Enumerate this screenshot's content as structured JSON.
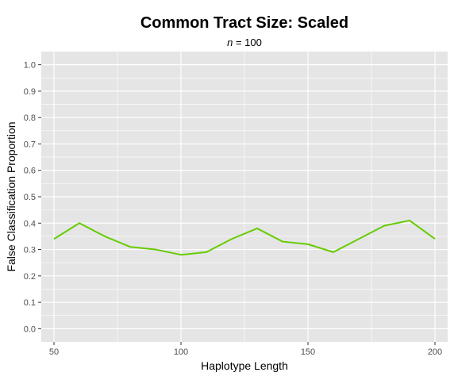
{
  "chart_data": {
    "type": "line",
    "title": "Common Tract Size: Scaled",
    "subtitle": {
      "italic": "n",
      "rest": " = 100"
    },
    "xlabel": "Haplotype Length",
    "ylabel": "False Classification Proportion",
    "xlim": [
      45,
      205
    ],
    "ylim": [
      -0.05,
      1.05
    ],
    "xticks": [
      50,
      100,
      150,
      200
    ],
    "yticks": [
      0.0,
      0.1,
      0.2,
      0.3,
      0.4,
      0.5,
      0.6,
      0.7,
      0.8,
      0.9,
      1.0
    ],
    "xtick_labels": [
      "50",
      "100",
      "150",
      "200"
    ],
    "ytick_labels": [
      "0.0",
      "0.1",
      "0.2",
      "0.3",
      "0.4",
      "0.5",
      "0.6",
      "0.7",
      "0.8",
      "0.9",
      "1.0"
    ],
    "grid": true,
    "legend": "none",
    "colors": {
      "line": "#66cc00",
      "panel": "#e5e5e5",
      "grid": "#ffffff"
    },
    "series": [
      {
        "x": [
          50,
          60,
          70,
          80,
          90,
          100,
          110,
          120,
          130,
          140,
          150,
          160,
          170,
          180,
          190,
          200
        ],
        "values": [
          0.34,
          0.4,
          0.35,
          0.31,
          0.3,
          0.28,
          0.29,
          0.34,
          0.38,
          0.33,
          0.32,
          0.29,
          0.34,
          0.39,
          0.41,
          0.34
        ]
      }
    ]
  }
}
